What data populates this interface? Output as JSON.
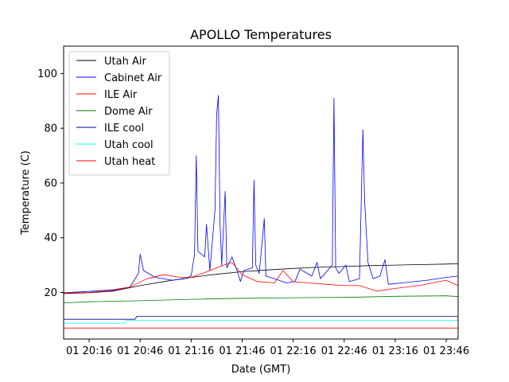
{
  "chart_data": {
    "type": "line",
    "title": "APOLLO Temperatures",
    "xlabel": "Date (GMT)",
    "ylabel": "Temperature (C)",
    "x_unit": "minutes",
    "xlim": [
      "20:01",
      "23:53"
    ],
    "ylim": [
      3,
      110
    ],
    "x_ticks": [
      "01 20:16",
      "01 20:46",
      "01 21:16",
      "01 21:46",
      "01 22:16",
      "01 22:46",
      "01 23:16",
      "01 23:46"
    ],
    "y_ticks": [
      20,
      40,
      60,
      80,
      100
    ],
    "legend_position": "top-left",
    "grid": false,
    "series": [
      {
        "name": "Utah Air",
        "color": "#000000",
        "points": [
          [
            "20:01",
            19.6
          ],
          [
            "20:16",
            19.9
          ],
          [
            "20:30",
            20.5
          ],
          [
            "20:46",
            22.5
          ],
          [
            "21:00",
            24.0
          ],
          [
            "21:16",
            25.5
          ],
          [
            "21:30",
            26.6
          ],
          [
            "21:46",
            27.6
          ],
          [
            "22:00",
            28.2
          ],
          [
            "22:16",
            28.8
          ],
          [
            "22:30",
            29.2
          ],
          [
            "22:46",
            29.5
          ],
          [
            "23:00",
            29.8
          ],
          [
            "23:16",
            30.0
          ],
          [
            "23:30",
            30.2
          ],
          [
            "23:46",
            30.4
          ],
          [
            "23:53",
            30.5
          ]
        ]
      },
      {
        "name": "Cabinet Air",
        "color": "#0000ff",
        "points": [
          [
            "20:01",
            19.9
          ],
          [
            "20:16",
            20.4
          ],
          [
            "20:30",
            21.0
          ],
          [
            "20:40",
            22.0
          ],
          [
            "20:45",
            27.0
          ],
          [
            "20:46",
            34.0
          ],
          [
            "20:48",
            28.0
          ],
          [
            "20:55",
            25.5
          ],
          [
            "21:05",
            24.5
          ],
          [
            "21:12",
            25.0
          ],
          [
            "21:16",
            26.0
          ],
          [
            "21:18",
            34.0
          ],
          [
            "21:19",
            70.0
          ],
          [
            "21:20",
            35.0
          ],
          [
            "21:24",
            33.0
          ],
          [
            "21:25",
            45.0
          ],
          [
            "21:27",
            28.0
          ],
          [
            "21:30",
            50.0
          ],
          [
            "21:31",
            85.0
          ],
          [
            "21:32",
            92.0
          ],
          [
            "21:33",
            45.0
          ],
          [
            "21:34",
            30.0
          ],
          [
            "21:36",
            57.0
          ],
          [
            "21:37",
            29.0
          ],
          [
            "21:40",
            33.0
          ],
          [
            "21:43",
            28.0
          ],
          [
            "21:45",
            24.0
          ],
          [
            "21:47",
            28.0
          ],
          [
            "21:52",
            29.0
          ],
          [
            "21:53",
            61.0
          ],
          [
            "21:54",
            30.0
          ],
          [
            "21:56",
            27.0
          ],
          [
            "21:59",
            47.0
          ],
          [
            "22:00",
            26.0
          ],
          [
            "22:05",
            25.0
          ],
          [
            "22:12",
            23.5
          ],
          [
            "22:17",
            24.0
          ],
          [
            "22:20",
            28.5
          ],
          [
            "22:27",
            26.0
          ],
          [
            "22:30",
            31.0
          ],
          [
            "22:32",
            25.0
          ],
          [
            "22:39",
            30.0
          ],
          [
            "22:40",
            91.0
          ],
          [
            "22:41",
            29.0
          ],
          [
            "22:43",
            27.0
          ],
          [
            "22:47",
            30.0
          ],
          [
            "22:49",
            24.0
          ],
          [
            "22:55",
            25.0
          ],
          [
            "22:57",
            79.5
          ],
          [
            "22:58",
            54.0
          ],
          [
            "22:59",
            42.0
          ],
          [
            "23:00",
            31.0
          ],
          [
            "23:03",
            25.0
          ],
          [
            "23:07",
            26.0
          ],
          [
            "23:10",
            32.0
          ],
          [
            "23:12",
            23.0
          ],
          [
            "23:20",
            23.5
          ],
          [
            "23:35",
            24.5
          ],
          [
            "23:46",
            25.5
          ],
          [
            "23:53",
            26.0
          ]
        ]
      },
      {
        "name": "ILE Air",
        "color": "#ff0000",
        "points": [
          [
            "20:01",
            19.8
          ],
          [
            "20:16",
            20.0
          ],
          [
            "20:30",
            20.8
          ],
          [
            "20:40",
            22.0
          ],
          [
            "20:50",
            25.0
          ],
          [
            "21:00",
            26.5
          ],
          [
            "21:10",
            25.5
          ],
          [
            "21:16",
            25.5
          ],
          [
            "21:25",
            27.5
          ],
          [
            "21:35",
            30.0
          ],
          [
            "21:40",
            31.0
          ],
          [
            "21:46",
            26.5
          ],
          [
            "21:55",
            24.0
          ],
          [
            "22:05",
            23.5
          ],
          [
            "22:10",
            28.0
          ],
          [
            "22:16",
            24.0
          ],
          [
            "22:25",
            23.5
          ],
          [
            "22:35",
            23.0
          ],
          [
            "22:46",
            22.5
          ],
          [
            "22:55",
            22.5
          ],
          [
            "23:05",
            20.5
          ],
          [
            "23:16",
            21.5
          ],
          [
            "23:30",
            22.5
          ],
          [
            "23:46",
            24.5
          ],
          [
            "23:53",
            22.5
          ]
        ]
      },
      {
        "name": "Dome Air",
        "color": "#008000",
        "points": [
          [
            "20:01",
            16.2
          ],
          [
            "20:16",
            16.6
          ],
          [
            "20:46",
            17.0
          ],
          [
            "21:16",
            17.5
          ],
          [
            "21:46",
            17.9
          ],
          [
            "22:16",
            18.1
          ],
          [
            "22:46",
            18.2
          ],
          [
            "23:16",
            18.6
          ],
          [
            "23:46",
            18.8
          ],
          [
            "23:53",
            18.5
          ]
        ]
      },
      {
        "name": "ILE cool",
        "color": "#00008b",
        "points": [
          [
            "20:01",
            10.2
          ],
          [
            "20:43",
            10.2
          ],
          [
            "20:44",
            11.3
          ],
          [
            "23:53",
            11.3
          ]
        ]
      },
      {
        "name": "Utah cool",
        "color": "#00ffff",
        "points": [
          [
            "20:01",
            8.8
          ],
          [
            "20:37",
            8.8
          ],
          [
            "20:38",
            9.8
          ],
          [
            "23:53",
            9.8
          ]
        ]
      },
      {
        "name": "Utah heat",
        "color": "#ff0000",
        "points": [
          [
            "20:01",
            7.0
          ],
          [
            "23:53",
            7.0
          ]
        ]
      }
    ]
  }
}
